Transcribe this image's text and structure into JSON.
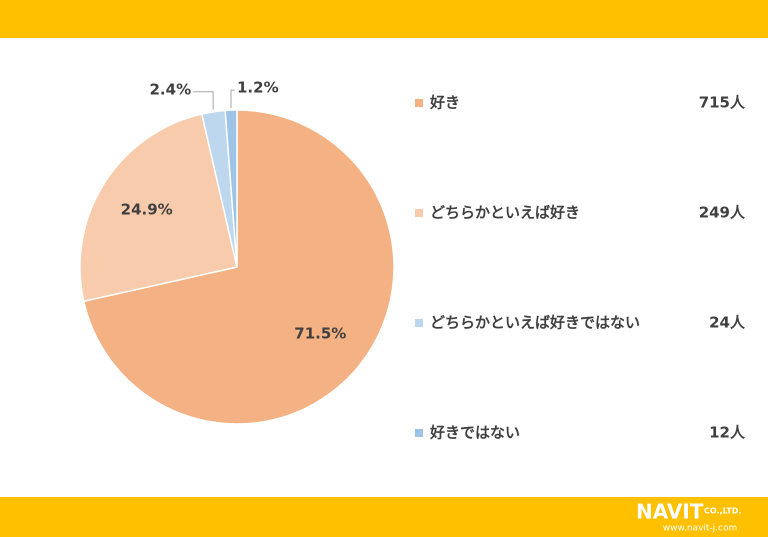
{
  "chart_data": {
    "type": "pie",
    "categories": [
      "好き",
      "どちらかといえば好き",
      "どちらかといえば好きではない",
      "好きではない"
    ],
    "values": [
      71.5,
      24.9,
      2.4,
      1.2
    ],
    "value_labels": [
      "71.5%",
      "24.9%",
      "2.4%",
      "1.2%"
    ],
    "counts": [
      "715人",
      "249人",
      "24人",
      "12人"
    ],
    "colors": [
      "#f4b183",
      "#f8cbad",
      "#bdd7ee",
      "#9dc3e6"
    ]
  },
  "footer": {
    "logo": "NAVIT",
    "company": "CO.,LTD.",
    "url": "www.navit-j.com"
  }
}
